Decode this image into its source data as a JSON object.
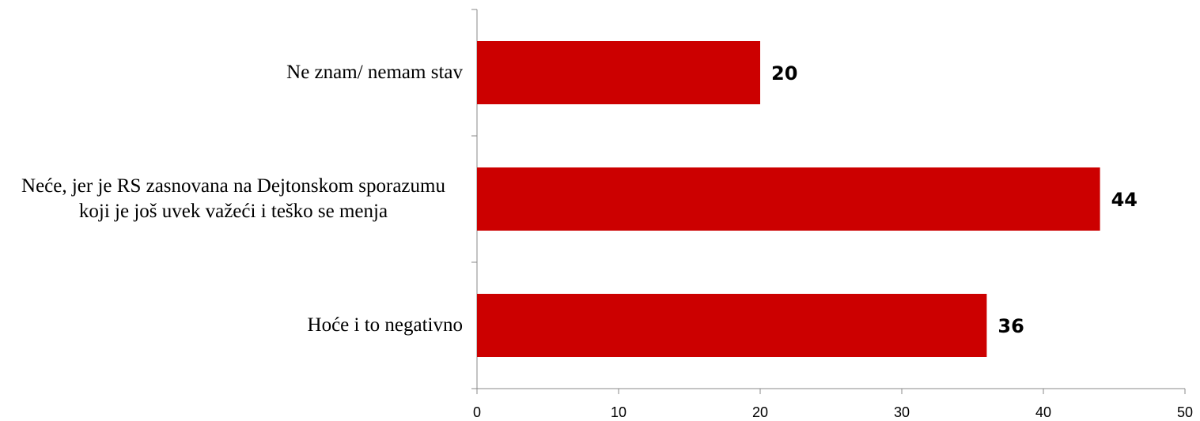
{
  "chart_data": {
    "type": "bar",
    "orientation": "horizontal",
    "categories": [
      "Ne znam/ nemam stav",
      "Neće, jer je RS zasnovana na Dejtonskom sporazumu koji je još uvek važeći i teško se menja",
      "Hoće i to negativno"
    ],
    "values": [
      20,
      44,
      36
    ],
    "color": "#cc0000",
    "xlim": [
      0,
      50
    ],
    "xticks": [
      0,
      10,
      20,
      30,
      40,
      50
    ]
  }
}
